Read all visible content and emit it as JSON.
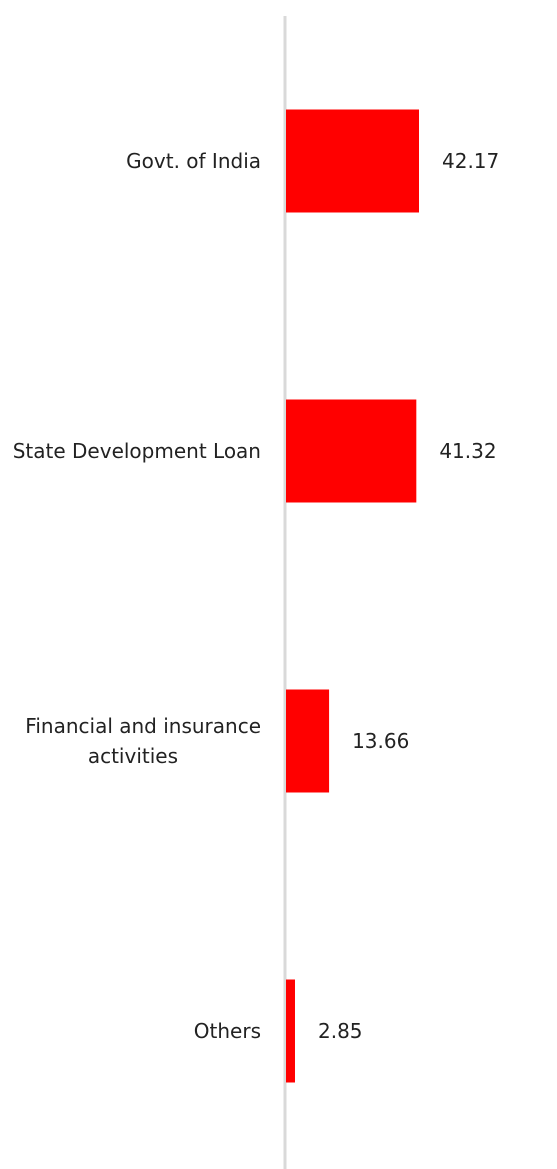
{
  "chart_data": {
    "type": "bar",
    "orientation": "horizontal",
    "categories": [
      [
        "Govt. of India"
      ],
      [
        "State Development Loan"
      ],
      [
        "Financial and insurance",
        "activities"
      ],
      [
        "Others"
      ]
    ],
    "values": [
      42.17,
      41.32,
      13.66,
      2.85
    ],
    "value_labels": [
      "42.17",
      "41.32",
      "13.66",
      "2.85"
    ],
    "title": "",
    "xlabel": "",
    "ylabel": "",
    "xlim": [
      0,
      100
    ],
    "grid": false,
    "legend": "none",
    "bar_color": "#ff0000",
    "axis_color": "#d9d9d9"
  }
}
